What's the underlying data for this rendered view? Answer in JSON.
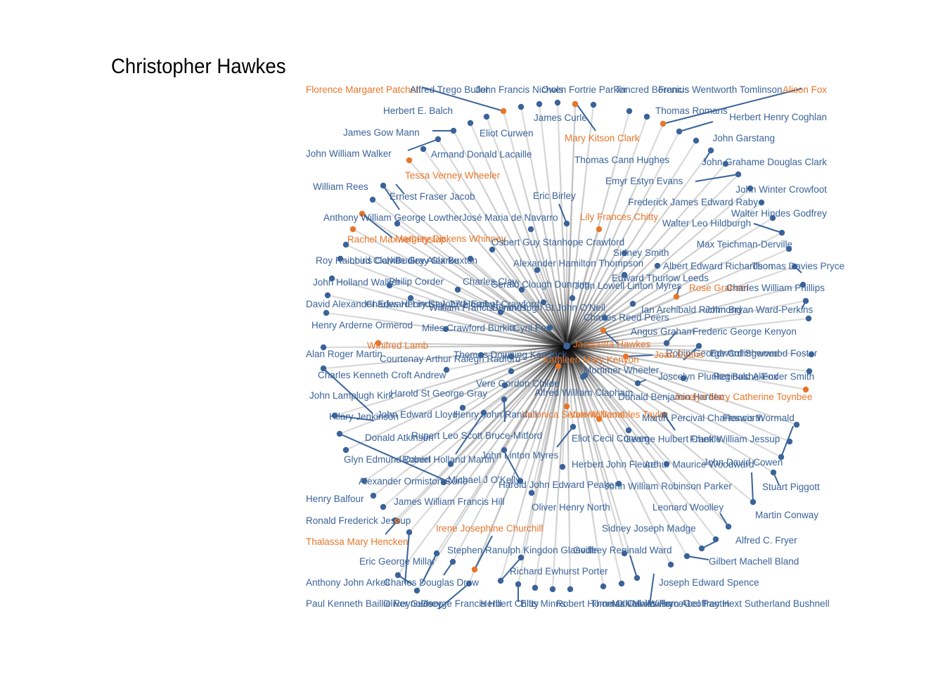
{
  "title": "Christopher Hawkes",
  "colors": {
    "male": "#3a6399",
    "female": "#e8762a",
    "edge": "#cfcfcf",
    "center_edge": "#000000"
  },
  "center": "Christopher Hawkes",
  "nodes": [
    {
      "name": "Florence Margaret Patchett",
      "g": "f"
    },
    {
      "name": "Alfred Trego Butler",
      "g": "m"
    },
    {
      "name": "John Francis Nichols",
      "g": "m"
    },
    {
      "name": "Owen Fortrie Parker",
      "g": "m"
    },
    {
      "name": "Tancred Borenius",
      "g": "m"
    },
    {
      "name": "Francis Wentworth Tomlinson",
      "g": "m"
    },
    {
      "name": "Alison Fox",
      "g": "f"
    },
    {
      "name": "Herbert E. Balch",
      "g": "m"
    },
    {
      "name": "James Curle",
      "g": "m"
    },
    {
      "name": "Thomas Romans",
      "g": "m"
    },
    {
      "name": "Herbert Henry Coghlan",
      "g": "m"
    },
    {
      "name": "James Gow Mann",
      "g": "m"
    },
    {
      "name": "Eliot Curwen",
      "g": "m"
    },
    {
      "name": "Mary Kitson Clark",
      "g": "f"
    },
    {
      "name": "John Garstang",
      "g": "m"
    },
    {
      "name": "John William Walker",
      "g": "m"
    },
    {
      "name": "Armand Donald Lacaille",
      "g": "m"
    },
    {
      "name": "Thomas Cann Hughes",
      "g": "m"
    },
    {
      "name": "John Grahame Douglas Clark",
      "g": "m"
    },
    {
      "name": "Tessa Verney Wheeler",
      "g": "f"
    },
    {
      "name": "Emyr Estyn Evans",
      "g": "m"
    },
    {
      "name": "William Rees",
      "g": "m"
    },
    {
      "name": "John Winter Crowfoot",
      "g": "m"
    },
    {
      "name": "Ernest Fraser Jacob",
      "g": "m"
    },
    {
      "name": "Eric Birley",
      "g": "m"
    },
    {
      "name": "Frederick James Edward Raby",
      "g": "m"
    },
    {
      "name": "Anthony William George Lowther",
      "g": "m"
    },
    {
      "name": "José Maria de Navarro",
      "g": "m"
    },
    {
      "name": "Lily Frances Chitty",
      "g": "f"
    },
    {
      "name": "Walter Hindes Godfrey",
      "g": "m"
    },
    {
      "name": "Walter Leo Hildburgh",
      "g": "m"
    },
    {
      "name": "Rachel Maxwell-Hyslop",
      "g": "f"
    },
    {
      "name": "Margery Dickens Whinney",
      "g": "f"
    },
    {
      "name": "Osbert Guy Stanhope Crawford",
      "g": "m"
    },
    {
      "name": "Max Teichman-Derville",
      "g": "m"
    },
    {
      "name": "Sidney Smith",
      "g": "m"
    },
    {
      "name": "Roy Rainbird Clarke",
      "g": "m"
    },
    {
      "name": "Louis Colville Gray Clarke",
      "g": "m"
    },
    {
      "name": "Dudley Alex Buxton",
      "g": "m"
    },
    {
      "name": "Alexander Hamilton Thompson",
      "g": "m"
    },
    {
      "name": "Albert Edward Richardson",
      "g": "m"
    },
    {
      "name": "Thomas Davies Pryce",
      "g": "m"
    },
    {
      "name": "Edward Thurlow Leeds",
      "g": "m"
    },
    {
      "name": "John Holland Walker",
      "g": "m"
    },
    {
      "name": "Philip Corder",
      "g": "m"
    },
    {
      "name": "Charles Clay",
      "g": "m"
    },
    {
      "name": "Gerald Clough Dunning",
      "g": "m"
    },
    {
      "name": "John Lowell Linton Myres",
      "g": "m"
    },
    {
      "name": "Rose Graham",
      "g": "f"
    },
    {
      "name": "Charles William Phillips",
      "g": "m"
    },
    {
      "name": "David Alexander Edward Lindsay, 27th Earl of Crawford",
      "g": "m"
    },
    {
      "name": "Charles Henry St John Hornby",
      "g": "m"
    },
    {
      "name": "William Francis Grimes",
      "g": "m"
    },
    {
      "name": "Bryan Hugh St John O'Neil",
      "g": "m"
    },
    {
      "name": "Ian Archibald Richmond",
      "g": "m"
    },
    {
      "name": "John Bryan Ward-Perkins",
      "g": "m"
    },
    {
      "name": "Charles Reed Peers",
      "g": "m"
    },
    {
      "name": "Henry Arderne Ormerod",
      "g": "m"
    },
    {
      "name": "Miles Crawford Burkitt",
      "g": "m"
    },
    {
      "name": "Cyril Fox",
      "g": "m"
    },
    {
      "name": "Angus Graham",
      "g": "m"
    },
    {
      "name": "Frederic George Kenyon",
      "g": "m"
    },
    {
      "name": "Jacquetta Hawkes",
      "g": "f"
    },
    {
      "name": "Winifred Lamb",
      "g": "f"
    },
    {
      "name": "Alan Roger Martin",
      "g": "m"
    },
    {
      "name": "Thomas Downing Kendrick",
      "g": "m"
    },
    {
      "name": "Robin George Collingwood",
      "g": "m"
    },
    {
      "name": "Edward Sherwood Foster",
      "g": "m"
    },
    {
      "name": "Joan Evans",
      "g": "f"
    },
    {
      "name": "Courtenay Arthur Ralegh Radford",
      "g": "m"
    },
    {
      "name": "Kathleen Mary Kenyon",
      "g": "f"
    },
    {
      "name": "Mortimer Wheeler",
      "g": "m"
    },
    {
      "name": "Charles Kenneth Croft Andrew",
      "g": "m"
    },
    {
      "name": "Joscelyn Plunket Bushe-Fox",
      "g": "m"
    },
    {
      "name": "Reginald Allender Smith",
      "g": "m"
    },
    {
      "name": "Vere Gordon Childe",
      "g": "m"
    },
    {
      "name": "Harold St George Gray",
      "g": "m"
    },
    {
      "name": "Alfred William Clapham",
      "g": "m"
    },
    {
      "name": "John Lamplugh Kirk",
      "g": "m"
    },
    {
      "name": "Donald Benjamin Harden",
      "g": "m"
    },
    {
      "name": "Jocelyn Mary Catherine Toynbee",
      "g": "f"
    },
    {
      "name": "John Edward Lloyd",
      "g": "m"
    },
    {
      "name": "Henry John Randall",
      "g": "m"
    },
    {
      "name": "Hilary Jenkinson",
      "g": "m"
    },
    {
      "name": "Veronica Seton-Williams",
      "g": "f"
    },
    {
      "name": "Valerie Venables Taylor",
      "g": "f"
    },
    {
      "name": "Martin Percival Charlesworth",
      "g": "m"
    },
    {
      "name": "Francis Wormald",
      "g": "m"
    },
    {
      "name": "Donald Atkinson",
      "g": "m"
    },
    {
      "name": "Rupert Leo Scott Bruce-Mitford",
      "g": "m"
    },
    {
      "name": "Eliot Cecil Curwen",
      "g": "m"
    },
    {
      "name": "George Hulbert Chettle",
      "g": "m"
    },
    {
      "name": "Frank William Jessup",
      "g": "m"
    },
    {
      "name": "John Linton Myres",
      "g": "m"
    },
    {
      "name": "Glyn Edmund Daniel",
      "g": "m"
    },
    {
      "name": "Robert Holland Martin",
      "g": "m"
    },
    {
      "name": "Herbert John Fleure",
      "g": "m"
    },
    {
      "name": "Arthur Maurice Woodward",
      "g": "m"
    },
    {
      "name": "John David Cowen",
      "g": "m"
    },
    {
      "name": "Alexander Ormiston Curle",
      "g": "m"
    },
    {
      "name": "Michael J O'Kelly",
      "g": "m"
    },
    {
      "name": "Harold John Edward Peake",
      "g": "m"
    },
    {
      "name": "John William Robinson Parker",
      "g": "m"
    },
    {
      "name": "Stuart Piggott",
      "g": "m"
    },
    {
      "name": "Henry Balfour",
      "g": "m"
    },
    {
      "name": "James William Francis Hill",
      "g": "m"
    },
    {
      "name": "Oliver Henry North",
      "g": "m"
    },
    {
      "name": "Leonard Woolley",
      "g": "m"
    },
    {
      "name": "Martin Conway",
      "g": "m"
    },
    {
      "name": "Ronald Frederick Jessup",
      "g": "m"
    },
    {
      "name": "Irene Josephine Churchill",
      "g": "f"
    },
    {
      "name": "Sidney Joseph Madge",
      "g": "m"
    },
    {
      "name": "Thalassa Mary Hencken",
      "g": "f"
    },
    {
      "name": "Alfred C. Fryer",
      "g": "m"
    },
    {
      "name": "Stephen Ranulph Kingdon Glanville",
      "g": "m"
    },
    {
      "name": "Godfrey Reginald Ward",
      "g": "m"
    },
    {
      "name": "Eric George Millar",
      "g": "m"
    },
    {
      "name": "Gilbert Machell Bland",
      "g": "m"
    },
    {
      "name": "Richard Ewhurst Porter",
      "g": "m"
    },
    {
      "name": "Anthony John Arkell",
      "g": "m"
    },
    {
      "name": "Charles Douglas Drew",
      "g": "m"
    },
    {
      "name": "Joseph Edward Spence",
      "g": "m"
    },
    {
      "name": "Paul Kenneth Baillie Reynolds",
      "g": "m"
    },
    {
      "name": "Oliver Gurney",
      "g": "m"
    },
    {
      "name": "George Francis Hill",
      "g": "m"
    },
    {
      "name": "Herbert Chitty",
      "g": "m"
    },
    {
      "name": "Ellis Minns",
      "g": "m"
    },
    {
      "name": "Robert Horne O'Neil",
      "g": "m"
    },
    {
      "name": "Thomas Davies Pryce",
      "g": "m"
    },
    {
      "name": "Max Mallowan",
      "g": "m"
    },
    {
      "name": "William Abel Pantin",
      "g": "m"
    },
    {
      "name": "Geoffrey Hext Sutherland Bushnell",
      "g": "m"
    }
  ]
}
